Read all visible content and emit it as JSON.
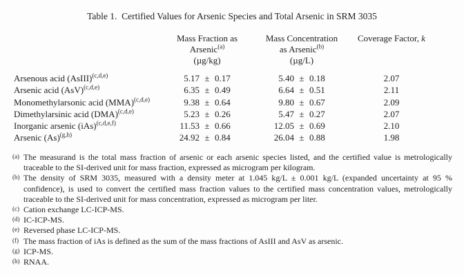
{
  "title": "Table 1.  Certified Values for Arsenic Species and Total Arsenic in SRM 3035",
  "table": {
    "pm_symbol": "±",
    "header": {
      "mass_fraction": {
        "line1": "Mass Fraction as",
        "line2": "Arsenic",
        "sup": "(a)",
        "unit": "(µg/kg)"
      },
      "mass_concentration": {
        "line1": "Mass Concentration",
        "line2": "as Arsenic",
        "sup": "(b)",
        "unit": "(µg/L)"
      },
      "coverage": {
        "label": "Coverage Factor, ",
        "symbol": "k"
      }
    },
    "rows": [
      {
        "species": "Arsenous acid (AsIII)",
        "sup": "(c,d,e)",
        "mf": "5.17",
        "mf_u": "0.17",
        "mc": "5.40",
        "mc_u": "0.18",
        "k": "2.07"
      },
      {
        "species": "Arsenic acid (AsV)",
        "sup": "(c,d,e)",
        "mf": "6.35",
        "mf_u": "0.49",
        "mc": "6.64",
        "mc_u": "0.51",
        "k": "2.11"
      },
      {
        "species": "Monomethylarsonic acid (MMA)",
        "sup": "(c,d,e)",
        "mf": "9.38",
        "mf_u": "0.64",
        "mc": "9.80",
        "mc_u": "0.67",
        "k": "2.09"
      },
      {
        "species": "Dimethylarsinic acid (DMA)",
        "sup": "(c,d,e)",
        "mf": "5.23",
        "mf_u": "0.26",
        "mc": "5.47",
        "mc_u": "0.27",
        "k": "2.07"
      },
      {
        "species": "Inorganic arsenic (iAs)",
        "sup": "(c,d,e,f)",
        "mf": "11.53",
        "mf_u": "0.66",
        "mc": "12.05",
        "mc_u": "0.69",
        "k": "2.10"
      },
      {
        "species": "Arsenic (As)",
        "sup": "(g,h)",
        "mf": "24.92",
        "mf_u": "0.84",
        "mc": "26.04",
        "mc_u": "0.88",
        "k": "1.98"
      }
    ]
  },
  "footnotes": [
    {
      "marker": "(a)",
      "text": "The measurand is the total mass fraction of arsenic or each arsenic species listed, and the certified value is metrologically traceable to the SI-derived unit for mass fraction, expressed as microgram per kilogram."
    },
    {
      "marker": "(b)",
      "text": "The density of SRM 3035, measured with a density meter at 1.045 kg/L ± 0.001 kg/L (expanded uncertainty at 95 % confidence), is used to convert the certified mass fraction values to the certified mass concentration values, metrologically traceable to the SI-derived unit for mass concentration, expressed as microgram per liter."
    },
    {
      "marker": "(c)",
      "text": "Cation exchange LC-ICP-MS."
    },
    {
      "marker": "(d)",
      "text": "IC-ICP-MS."
    },
    {
      "marker": "(e)",
      "text": "Reversed phase LC-ICP-MS."
    },
    {
      "marker": "(f)",
      "text": "The mass fraction of iAs is defined as the sum of the mass fractions of AsIII and AsV as arsenic."
    },
    {
      "marker": "(g)",
      "text": "ICP-MS."
    },
    {
      "marker": "(h)",
      "text": "RNAA."
    }
  ]
}
